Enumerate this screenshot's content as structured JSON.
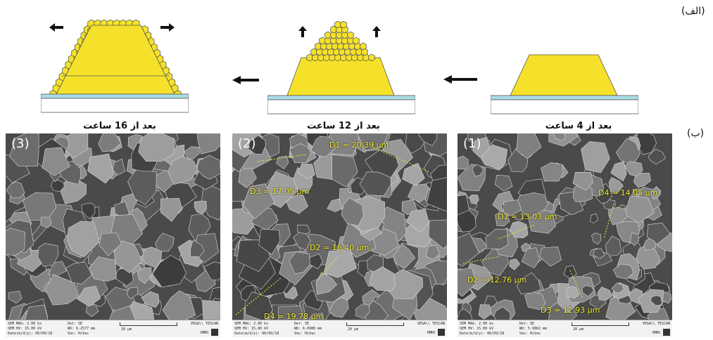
{
  "panel_labels": {
    "a": "(الف)",
    "b": "(ب)"
  },
  "stages": [
    {
      "caption": "بعد از 4 ساعت"
    },
    {
      "caption": "بعد از 12 ساعت"
    },
    {
      "caption": "بعد از 16 ساعت"
    }
  ],
  "colors": {
    "crystal": "#f5e12a",
    "substrate_top": "#a9dde6",
    "substrate": "#ffffff",
    "outline": "#333333",
    "measure": "#f1ee2a"
  },
  "sem_images": [
    {
      "number": "(1)",
      "measurements": [
        "D1 = 13.03 µm",
        "D2 = 12.76 µm",
        "D3 = 12.93 µm",
        "D4 = 14.05 µm"
      ],
      "footer": {
        "mag": "SEM MAG: 2.00 kx",
        "hv": "SEM HV: 15.00 kV",
        "date": "Date(m/d/y): 06/09/18",
        "det": "Det: SE",
        "wd": "WD: 5.9862 mm",
        "vac": "Vac: HiVac",
        "scale": "20 µm",
        "brand": "VEGA\\\\ TESCAN",
        "lab": "RMRC"
      }
    },
    {
      "number": "(2)",
      "measurements": [
        "D1 = 20.39 µm",
        "D2 = 16.40 µm",
        "D3 = 17.05 µm",
        "D4 = 19.78 µm"
      ],
      "footer": {
        "mag": "SEM MAG: 2.00 kx",
        "hv": "SEM HV: 15.00 kV",
        "date": "Date(m/d/y): 06/09/18",
        "det": "Det: SE",
        "wd": "WD: 6.0980 mm",
        "vac": "Vac: HiVac",
        "scale": "20 µm",
        "brand": "VEGA\\\\ TESCAN",
        "lab": "RMRC"
      }
    },
    {
      "number": "(3)",
      "measurements": [],
      "footer": {
        "mag": "SEM MAG: 2.00 kx",
        "hv": "SEM HV: 15.00 kV",
        "date": "Date(m/d/y): 06/09/18",
        "det": "Det: SE",
        "wd": "WD: 6.2577 mm",
        "vac": "Vac: HiVac",
        "scale": "20 µm",
        "brand": "VEGA\\\\ TESCAN",
        "lab": "RMRC"
      }
    }
  ]
}
